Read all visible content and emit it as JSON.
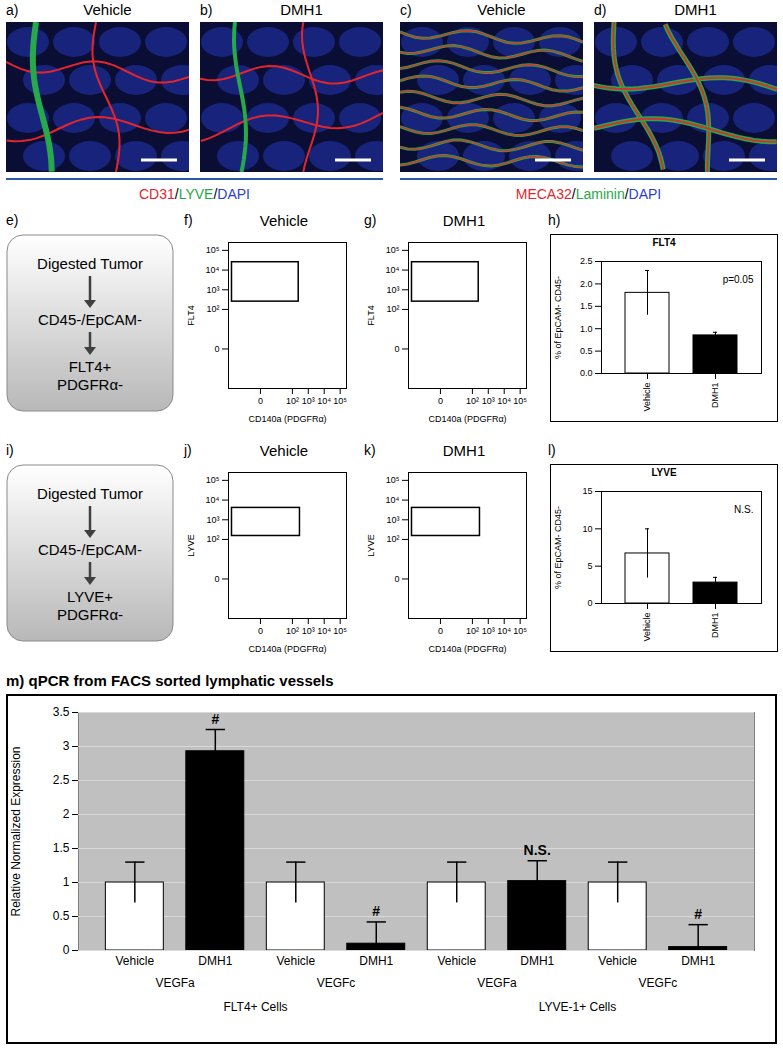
{
  "images": [
    {
      "label": "a)",
      "title": "Vehicle"
    },
    {
      "label": "b)",
      "title": "DMH1"
    },
    {
      "label": "c)",
      "title": "Vehicle"
    },
    {
      "label": "d)",
      "title": "DMH1"
    }
  ],
  "stains": [
    {
      "label": "CD31/LYVE/DAPI",
      "colors": [
        "#e3262d",
        "#27a84a",
        "#2b3fd1"
      ]
    },
    {
      "label": "MECA32/Laminin/DAPI",
      "colors": [
        "#e3262d",
        "#27a84a",
        "#2b3fd1"
      ]
    }
  ],
  "flowcharts": [
    {
      "label": "e)",
      "steps": [
        [
          "Digested Tumor"
        ],
        [
          "CD45-/EpCAM-"
        ],
        [
          "FLT4+",
          "PDGFRα-"
        ]
      ]
    },
    {
      "label": "i)",
      "steps": [
        [
          "Digested Tumor"
        ],
        [
          "CD45-/EpCAM-"
        ],
        [
          "LYVE+",
          "PDGFRα-"
        ]
      ]
    }
  ],
  "flow_plots": [
    {
      "label": "f)",
      "title": "Vehicle",
      "xlabel": "CD140a (PDGFRα)",
      "ylabel": "FLT4",
      "xlim": [
        -100,
        250000
      ],
      "ylim": [
        -100,
        250000
      ],
      "xticks": [
        0,
        {
          "value": 100,
          "label": "10²"
        },
        {
          "value": 1000,
          "label": "10³"
        },
        {
          "value": 10000,
          "label": "10⁴"
        },
        {
          "value": 100000,
          "label": "10⁵"
        }
      ],
      "yticks": [
        0,
        {
          "value": 100,
          "label": "10²"
        },
        {
          "value": 1000,
          "label": "10³"
        },
        {
          "value": 10000,
          "label": "10⁴"
        },
        {
          "value": 100000,
          "label": "10⁵"
        }
      ],
      "gate": {
        "x": [
          -60,
          250
        ],
        "y": [
          250,
          25000
        ]
      }
    },
    {
      "label": "g)",
      "title": "DMH1",
      "xlabel": "CD140a (PDGFRα)",
      "ylabel": "FLT4",
      "xlim": [
        -100,
        250000
      ],
      "ylim": [
        -100,
        250000
      ],
      "xticks": [
        0,
        {
          "value": 100,
          "label": "10²"
        },
        {
          "value": 1000,
          "label": "10³"
        },
        {
          "value": 10000,
          "label": "10⁴"
        },
        {
          "value": 100000,
          "label": "10⁵"
        }
      ],
      "yticks": [
        0,
        {
          "value": 100,
          "label": "10²"
        },
        {
          "value": 1000,
          "label": "10³"
        },
        {
          "value": 10000,
          "label": "10⁴"
        },
        {
          "value": 100000,
          "label": "10⁵"
        }
      ],
      "gate": {
        "x": [
          -60,
          250
        ],
        "y": [
          250,
          25000
        ]
      }
    },
    {
      "label": "j)",
      "title": "Vehicle",
      "xlabel": "CD140a (PDGFRα)",
      "ylabel": "LYVE",
      "xlim": [
        -100,
        250000
      ],
      "ylim": [
        -100,
        250000
      ],
      "xticks": [
        0,
        {
          "value": 100,
          "label": "10²"
        },
        {
          "value": 1000,
          "label": "10³"
        },
        {
          "value": 10000,
          "label": "10⁴"
        },
        {
          "value": 100000,
          "label": "10⁵"
        }
      ],
      "yticks": [
        0,
        {
          "value": 100,
          "label": "10²"
        },
        {
          "value": 1000,
          "label": "10³"
        },
        {
          "value": 10000,
          "label": "10⁴"
        },
        {
          "value": 100000,
          "label": "10⁵"
        }
      ],
      "gate": {
        "x": [
          -60,
          300
        ],
        "y": [
          150,
          4000
        ]
      }
    },
    {
      "label": "k)",
      "title": "DMH1",
      "xlabel": "CD140a (PDGFRα)",
      "ylabel": "LYVE",
      "xlim": [
        -100,
        250000
      ],
      "ylim": [
        -100,
        250000
      ],
      "xticks": [
        0,
        {
          "value": 100,
          "label": "10²"
        },
        {
          "value": 1000,
          "label": "10³"
        },
        {
          "value": 10000,
          "label": "10⁴"
        },
        {
          "value": 100000,
          "label": "10⁵"
        }
      ],
      "yticks": [
        0,
        {
          "value": 100,
          "label": "10²"
        },
        {
          "value": 1000,
          "label": "10³"
        },
        {
          "value": 10000,
          "label": "10⁴"
        },
        {
          "value": 100000,
          "label": "10⁵"
        }
      ],
      "gate": {
        "x": [
          -60,
          300
        ],
        "y": [
          150,
          4000
        ]
      }
    }
  ],
  "chart_data": [
    {
      "type": "bar",
      "label": "h)",
      "title": "FLT4",
      "ylabel": "% of EpCAM- CD45-",
      "categories": [
        "Vehicle",
        "DMH1"
      ],
      "values": [
        1.8,
        0.85
      ],
      "errors": [
        0.5,
        0.07
      ],
      "colors": [
        "#ffffff",
        "#000000"
      ],
      "ylim": [
        0,
        2.5
      ],
      "yticks": [
        {
          "value": 0,
          "label": "0.0"
        },
        0.5,
        {
          "value": 1,
          "label": "1.0"
        },
        1.5,
        {
          "value": 2,
          "label": "2.0"
        },
        2.5
      ],
      "annotation": "p=0.05"
    },
    {
      "type": "bar",
      "label": "l)",
      "title": "LYVE",
      "ylabel": "% of EpCAM- CD45-",
      "categories": [
        "Vehicle",
        "DMH1"
      ],
      "values": [
        6.7,
        2.8
      ],
      "errors": [
        3.3,
        0.7
      ],
      "colors": [
        "#ffffff",
        "#000000"
      ],
      "ylim": [
        0,
        15
      ],
      "yticks": [
        0,
        5,
        10,
        15
      ],
      "annotation": "N.S."
    },
    {
      "type": "bar",
      "title": "m) qPCR from FACS sorted lymphatic vessels",
      "ylabel": "Relative Normalized Expression",
      "categories": [
        "VEGFa",
        "VEGFc",
        "VEGFa",
        "VEGFc"
      ],
      "groups": [
        "FLT4+ Cells",
        "FLT4+ Cells",
        "LYVE-1+ Cells",
        "LYVE-1+ Cells"
      ],
      "series": [
        {
          "name": "Vehicle",
          "color": "#ffffff",
          "values": [
            1,
            1,
            1,
            1
          ],
          "errors": [
            0.3,
            0.3,
            0.3,
            0.3
          ]
        },
        {
          "name": "DMH1",
          "color": "#000000",
          "values": [
            2.93,
            0.1,
            1.02,
            0.05
          ],
          "errors": [
            0.32,
            0.32,
            0.3,
            0.33
          ],
          "annotations": [
            "#",
            "#",
            "N.S.",
            "#"
          ]
        }
      ],
      "ylim": [
        0,
        3.5
      ],
      "yticks": [
        0,
        0.5,
        1,
        1.5,
        2,
        2.5,
        3,
        3.5
      ],
      "grid": true
    }
  ]
}
